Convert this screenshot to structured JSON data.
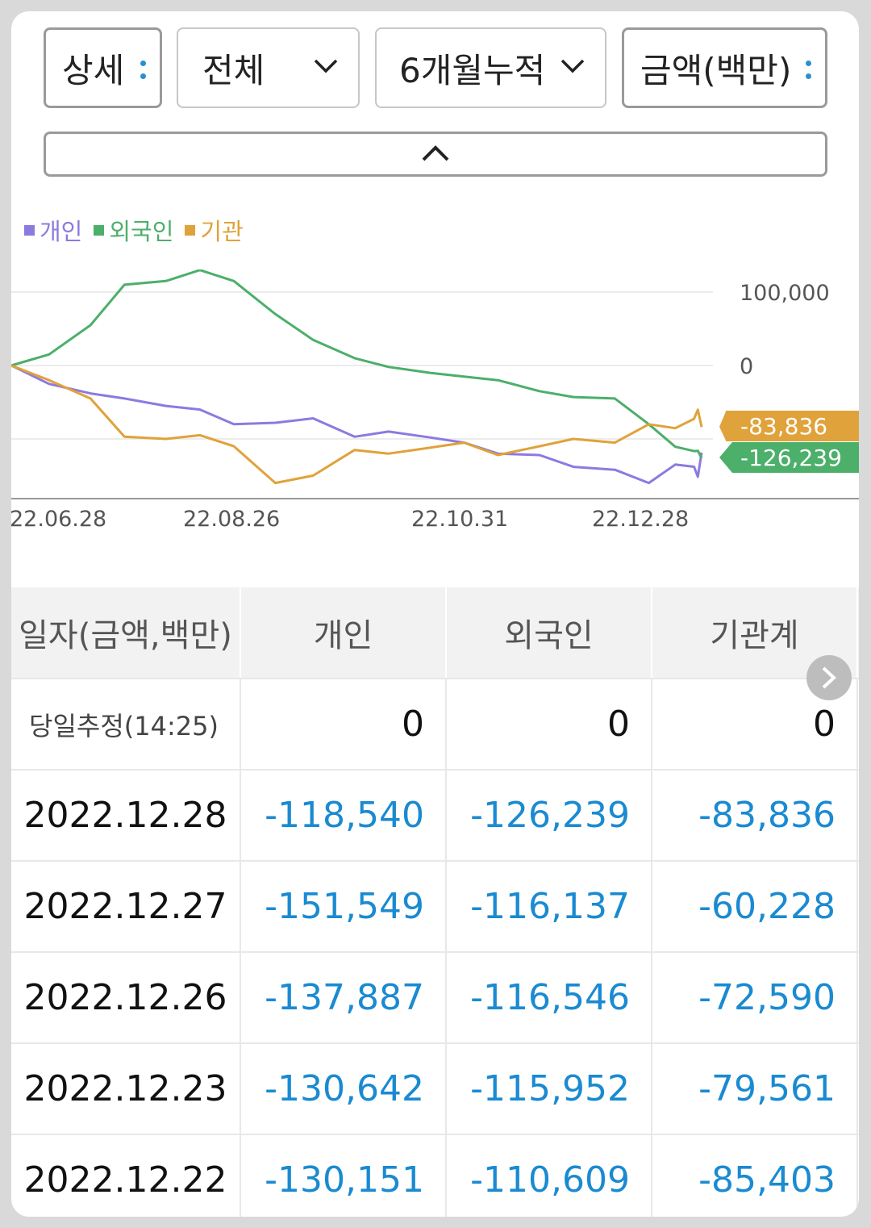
{
  "filters": {
    "detail": "상세",
    "scope": "전체",
    "period": "6개월누적",
    "unit": "금액(백만)"
  },
  "colors": {
    "individual": "#8c7ae0",
    "foreign": "#4caf6a",
    "institution": "#e0a23a",
    "value": "#1a8ad1"
  },
  "chart_data": {
    "type": "line",
    "legend": [
      "개인",
      "외국인",
      "기관"
    ],
    "x_tick_labels": [
      "22.06.28",
      "22.08.26",
      "22.10.31",
      "22.12.28"
    ],
    "y_tick_labels": [
      "100,000",
      "0"
    ],
    "ylim": [
      -170000,
      130000
    ],
    "series": [
      {
        "name": "개인",
        "color": "#8c7ae0",
        "x": [
          "2022-06-28",
          "2022-07-08",
          "2022-07-19",
          "2022-07-28",
          "2022-08-08",
          "2022-08-17",
          "2022-08-26",
          "2022-09-06",
          "2022-09-16",
          "2022-09-27",
          "2022-10-06",
          "2022-10-17",
          "2022-10-26",
          "2022-11-04",
          "2022-11-15",
          "2022-11-24",
          "2022-12-05",
          "2022-12-14",
          "2022-12-21",
          "2022-12-26",
          "2022-12-27",
          "2022-12-28"
        ],
        "values": [
          0,
          -25000,
          -38000,
          -45000,
          -55000,
          -60000,
          -80000,
          -78000,
          -72000,
          -97000,
          -90000,
          -98000,
          -105000,
          -120000,
          -122000,
          -138000,
          -142000,
          -160000,
          -135000,
          -137887,
          -151549,
          -118540
        ]
      },
      {
        "name": "외국인",
        "color": "#4caf6a",
        "x": [
          "2022-06-28",
          "2022-07-08",
          "2022-07-19",
          "2022-07-28",
          "2022-08-08",
          "2022-08-17",
          "2022-08-26",
          "2022-09-06",
          "2022-09-16",
          "2022-09-27",
          "2022-10-06",
          "2022-10-17",
          "2022-10-26",
          "2022-11-04",
          "2022-11-15",
          "2022-11-24",
          "2022-12-05",
          "2022-12-14",
          "2022-12-21",
          "2022-12-26",
          "2022-12-27",
          "2022-12-28"
        ],
        "values": [
          0,
          15000,
          55000,
          110000,
          115000,
          130000,
          115000,
          70000,
          35000,
          10000,
          -2000,
          -10000,
          -15000,
          -20000,
          -35000,
          -43000,
          -45000,
          -80000,
          -110609,
          -116546,
          -116137,
          -126239
        ]
      },
      {
        "name": "기관",
        "color": "#e0a23a",
        "x": [
          "2022-06-28",
          "2022-07-08",
          "2022-07-19",
          "2022-07-28",
          "2022-08-08",
          "2022-08-17",
          "2022-08-26",
          "2022-09-06",
          "2022-09-16",
          "2022-09-27",
          "2022-10-06",
          "2022-10-17",
          "2022-10-26",
          "2022-11-04",
          "2022-11-15",
          "2022-11-24",
          "2022-12-05",
          "2022-12-14",
          "2022-12-21",
          "2022-12-26",
          "2022-12-27",
          "2022-12-28"
        ],
        "values": [
          0,
          -20000,
          -45000,
          -97000,
          -100000,
          -95000,
          -110000,
          -160000,
          -150000,
          -115000,
          -120000,
          -112000,
          -105000,
          -122000,
          -110000,
          -100000,
          -105000,
          -80000,
          -85403,
          -72590,
          -60228,
          -83836
        ]
      }
    ],
    "end_labels": [
      {
        "text": "-83,836",
        "color": "#e0a23a"
      },
      {
        "text": "-126,239",
        "color": "#4caf6a"
      }
    ]
  },
  "table": {
    "headers": [
      "일자(금액,백만)",
      "개인",
      "외국인",
      "기관계"
    ],
    "today": {
      "label": "당일추정(14:25)",
      "values": [
        "0",
        "0",
        "0"
      ]
    },
    "rows": [
      {
        "date": "2022.12.28",
        "values": [
          "-118,540",
          "-126,239",
          "-83,836"
        ]
      },
      {
        "date": "2022.12.27",
        "values": [
          "-151,549",
          "-116,137",
          "-60,228"
        ]
      },
      {
        "date": "2022.12.26",
        "values": [
          "-137,887",
          "-116,546",
          "-72,590"
        ]
      },
      {
        "date": "2022.12.23",
        "values": [
          "-130,642",
          "-115,952",
          "-79,561"
        ]
      },
      {
        "date": "2022.12.22",
        "values": [
          "-130,151",
          "-110,609",
          "-85,403"
        ]
      }
    ]
  }
}
